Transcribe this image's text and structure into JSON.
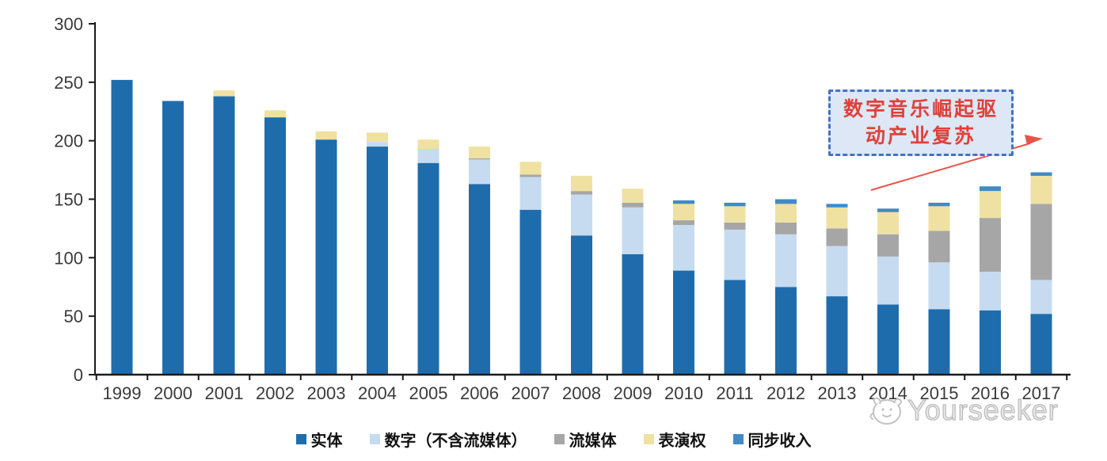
{
  "chart_data": {
    "type": "bar",
    "stacked": true,
    "title": "",
    "xlabel": "",
    "ylabel": "",
    "categories": [
      "1999",
      "2000",
      "2001",
      "2002",
      "2003",
      "2004",
      "2005",
      "2006",
      "2007",
      "2008",
      "2009",
      "2010",
      "2011",
      "2012",
      "2013",
      "2014",
      "2015",
      "2016",
      "2017"
    ],
    "series": [
      {
        "name": "实体",
        "color": "#1f6cad",
        "values": [
          252,
          234,
          238,
          220,
          201,
          195,
          181,
          163,
          141,
          119,
          103,
          89,
          81,
          75,
          67,
          60,
          56,
          55,
          52
        ]
      },
      {
        "name": "数字（不含流媒体）",
        "color": "#c6dbf0",
        "values": [
          0,
          0,
          0,
          0,
          0,
          4,
          12,
          21,
          28,
          35,
          40,
          39,
          43,
          45,
          43,
          41,
          40,
          33,
          29
        ]
      },
      {
        "name": "流媒体",
        "color": "#a6a6a6",
        "values": [
          0,
          0,
          0,
          0,
          0,
          0,
          0,
          1,
          2,
          3,
          4,
          4,
          6,
          10,
          15,
          19,
          27,
          46,
          65
        ]
      },
      {
        "name": "表演权",
        "color": "#efe1a2",
        "values": [
          0,
          0,
          5,
          6,
          7,
          8,
          8,
          10,
          11,
          13,
          12,
          14,
          14,
          16,
          18,
          19,
          21,
          23,
          24
        ]
      },
      {
        "name": "同步收入",
        "color": "#418ac6",
        "values": [
          0,
          0,
          0,
          0,
          0,
          0,
          0,
          0,
          0,
          0,
          0,
          3,
          3,
          4,
          3,
          3,
          3,
          4,
          3
        ]
      }
    ],
    "ylim": [
      0,
      300
    ],
    "yticks": [
      0,
      50,
      100,
      150,
      200,
      250,
      300
    ],
    "grid": false,
    "legend_position": "bottom"
  },
  "annotation": {
    "line1": "数字音乐崛起驱",
    "line2": "动产业复苏",
    "text_color": "#e0403a",
    "border_color": "#4472c4",
    "fill_color": "#dde7f5",
    "arrow_color": "#e8544a"
  },
  "watermark": {
    "text": "Yourseeker",
    "logo": "yourseeker-face-logo"
  },
  "axis": {
    "line_color": "#1a1a1a",
    "tick_label_color": "#3a3a3a"
  }
}
